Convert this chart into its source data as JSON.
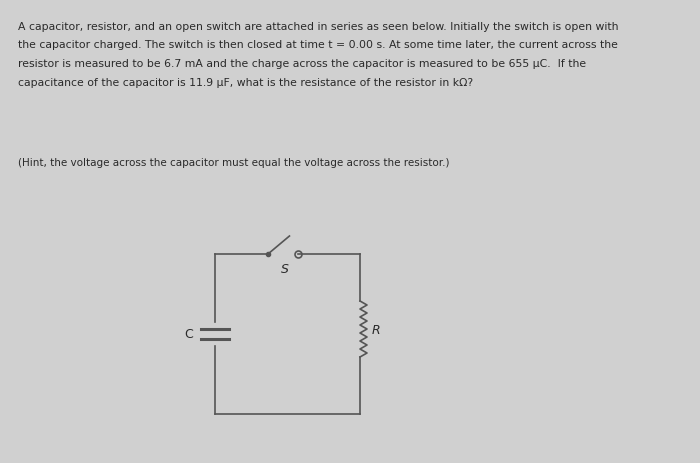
{
  "bg_color": "#d0d0d0",
  "text_color": "#2a2a2a",
  "main_text_lines": [
    "A capacitor, resistor, and an open switch are attached in series as seen below. Initially the switch is open with",
    "the capacitor charged. The switch is then closed at time t = 0.00 s. At some time later, the current across the",
    "resistor is measured to be 6.7 mA and the charge across the capacitor is measured to be 655 μC.  If the",
    "capacitance of the capacitor is 11.9 μF, what is the resistance of the resistor in kΩ?"
  ],
  "hint_text": "(Hint, the voltage across the capacitor must equal the voltage across the resistor.)",
  "circuit_color": "#555555",
  "label_C": "C",
  "label_S": "S",
  "label_R": "R",
  "font_size_main": 7.8,
  "font_size_hint": 7.5,
  "font_size_labels": 9
}
